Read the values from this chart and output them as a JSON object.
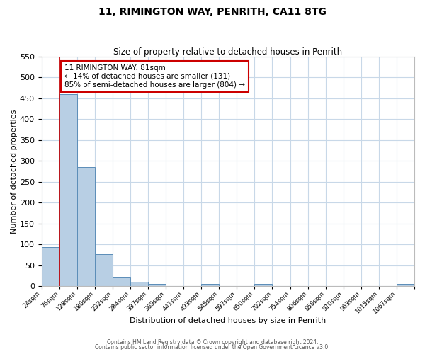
{
  "title": "11, RIMINGTON WAY, PENRITH, CA11 8TG",
  "subtitle": "Size of property relative to detached houses in Penrith",
  "xlabel": "Distribution of detached houses by size in Penrith",
  "ylabel": "Number of detached properties",
  "bin_labels": [
    "24sqm",
    "76sqm",
    "128sqm",
    "180sqm",
    "232sqm",
    "284sqm",
    "337sqm",
    "389sqm",
    "441sqm",
    "493sqm",
    "545sqm",
    "597sqm",
    "650sqm",
    "702sqm",
    "754sqm",
    "806sqm",
    "858sqm",
    "910sqm",
    "963sqm",
    "1015sqm",
    "1067sqm"
  ],
  "bar_values": [
    93,
    460,
    285,
    76,
    23,
    10,
    6,
    0,
    0,
    5,
    0,
    0,
    5,
    0,
    0,
    0,
    0,
    0,
    0,
    0,
    5
  ],
  "bar_color": "#b8cfe4",
  "bar_edgecolor": "#5b8db8",
  "ylim": [
    0,
    550
  ],
  "yticks": [
    0,
    50,
    100,
    150,
    200,
    250,
    300,
    350,
    400,
    450,
    500,
    550
  ],
  "property_line_x": 1,
  "property_line_color": "#cc0000",
  "annotation_title": "11 RIMINGTON WAY: 81sqm",
  "annotation_line1": "← 14% of detached houses are smaller (131)",
  "annotation_line2": "85% of semi-detached houses are larger (804) →",
  "annotation_box_edgecolor": "#cc0000",
  "footnote1": "Contains HM Land Registry data © Crown copyright and database right 2024.",
  "footnote2": "Contains public sector information licensed under the Open Government Licence v3.0.",
  "background_color": "#ffffff",
  "grid_color": "#c8d8e8"
}
